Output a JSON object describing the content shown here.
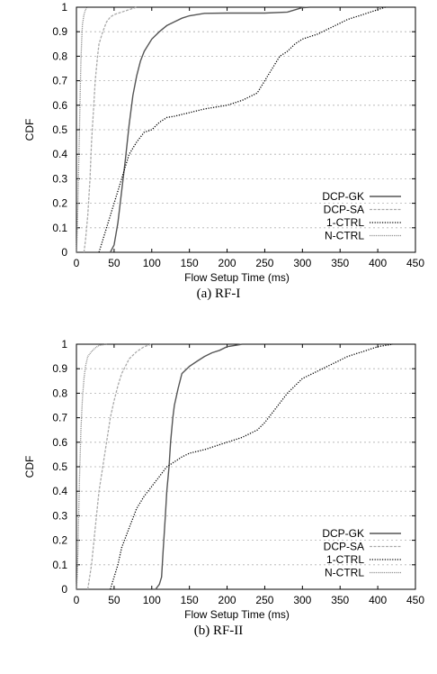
{
  "chart_data": [
    {
      "type": "line",
      "caption": "(a)  RF-I",
      "xlabel": "Flow Setup Time (ms)",
      "ylabel": "CDF",
      "xlim": [
        0,
        450
      ],
      "ylim": [
        0,
        1
      ],
      "xticks": [
        0,
        50,
        100,
        150,
        200,
        250,
        300,
        350,
        400,
        450
      ],
      "yticks": [
        0,
        0.1,
        0.2,
        0.3,
        0.4,
        0.5,
        0.6,
        0.7,
        0.8,
        0.9,
        1
      ],
      "grid": true,
      "legend_position": "bottom-right",
      "series": [
        {
          "name": "DCP-GK",
          "style": "solid",
          "color": "#555555",
          "x": [
            45,
            50,
            55,
            60,
            65,
            70,
            75,
            80,
            85,
            90,
            100,
            110,
            120,
            130,
            140,
            150,
            170,
            200,
            250,
            280,
            300,
            310
          ],
          "y": [
            0,
            0.03,
            0.12,
            0.25,
            0.38,
            0.52,
            0.64,
            0.72,
            0.78,
            0.82,
            0.87,
            0.9,
            0.925,
            0.94,
            0.955,
            0.965,
            0.975,
            0.976,
            0.976,
            0.98,
            0.998,
            1
          ]
        },
        {
          "name": "DCP-SA",
          "style": "dashed",
          "color": "#aaaaaa",
          "x": [
            10,
            12,
            15,
            18,
            20,
            23,
            25,
            28,
            30,
            35,
            40,
            45,
            50,
            60,
            70,
            80
          ],
          "y": [
            0,
            0.05,
            0.15,
            0.3,
            0.45,
            0.6,
            0.7,
            0.8,
            0.85,
            0.9,
            0.94,
            0.96,
            0.97,
            0.98,
            0.99,
            1
          ]
        },
        {
          "name": "1-CTRL",
          "style": "dotted",
          "color": "#000000",
          "x": [
            30,
            35,
            40,
            45,
            50,
            55,
            60,
            70,
            80,
            90,
            100,
            110,
            120,
            130,
            150,
            170,
            200,
            220,
            240,
            250,
            260,
            270,
            280,
            290,
            300,
            320,
            340,
            360,
            380,
            400,
            410
          ],
          "y": [
            0,
            0.05,
            0.1,
            0.15,
            0.2,
            0.25,
            0.3,
            0.4,
            0.45,
            0.49,
            0.5,
            0.53,
            0.55,
            0.555,
            0.57,
            0.585,
            0.6,
            0.62,
            0.65,
            0.7,
            0.75,
            0.8,
            0.82,
            0.85,
            0.87,
            0.89,
            0.92,
            0.95,
            0.97,
            0.99,
            1
          ]
        },
        {
          "name": "N-CTRL",
          "style": "fine-dotted",
          "color": "#777777",
          "x": [
            0,
            1,
            2,
            3,
            4,
            5,
            6,
            7,
            8,
            10,
            12,
            14
          ],
          "y": [
            0,
            0.08,
            0.2,
            0.35,
            0.5,
            0.65,
            0.78,
            0.87,
            0.93,
            0.97,
            0.99,
            1
          ]
        }
      ]
    },
    {
      "type": "line",
      "caption": "(b)  RF-II",
      "xlabel": "Flow Setup Time (ms)",
      "ylabel": "CDF",
      "xlim": [
        0,
        450
      ],
      "ylim": [
        0,
        1
      ],
      "xticks": [
        0,
        50,
        100,
        150,
        200,
        250,
        300,
        350,
        400,
        450
      ],
      "yticks": [
        0,
        0.1,
        0.2,
        0.3,
        0.4,
        0.5,
        0.6,
        0.7,
        0.8,
        0.9,
        1
      ],
      "grid": true,
      "legend_position": "bottom-right",
      "series": [
        {
          "name": "DCP-GK",
          "style": "solid",
          "color": "#555555",
          "x": [
            105,
            110,
            113,
            115,
            118,
            120,
            123,
            125,
            128,
            130,
            135,
            140,
            150,
            160,
            170,
            180,
            190,
            200,
            210,
            220
          ],
          "y": [
            0,
            0.02,
            0.05,
            0.15,
            0.3,
            0.4,
            0.5,
            0.6,
            0.7,
            0.75,
            0.82,
            0.88,
            0.91,
            0.93,
            0.95,
            0.965,
            0.975,
            0.99,
            0.995,
            1
          ]
        },
        {
          "name": "DCP-SA",
          "style": "dashed",
          "color": "#aaaaaa",
          "x": [
            15,
            20,
            25,
            30,
            35,
            40,
            45,
            50,
            55,
            60,
            65,
            70,
            80,
            90,
            100
          ],
          "y": [
            0,
            0.1,
            0.25,
            0.4,
            0.5,
            0.6,
            0.7,
            0.77,
            0.83,
            0.88,
            0.91,
            0.94,
            0.97,
            0.99,
            1
          ]
        },
        {
          "name": "1-CTRL",
          "style": "dotted",
          "color": "#000000",
          "x": [
            45,
            50,
            55,
            60,
            70,
            80,
            90,
            100,
            110,
            120,
            130,
            140,
            150,
            170,
            200,
            220,
            240,
            250,
            260,
            270,
            280,
            290,
            300,
            320,
            340,
            360,
            380,
            400,
            420
          ],
          "y": [
            0,
            0.05,
            0.1,
            0.17,
            0.25,
            0.33,
            0.38,
            0.42,
            0.46,
            0.5,
            0.52,
            0.54,
            0.555,
            0.57,
            0.6,
            0.62,
            0.65,
            0.68,
            0.72,
            0.76,
            0.8,
            0.83,
            0.86,
            0.89,
            0.92,
            0.95,
            0.97,
            0.99,
            1
          ]
        },
        {
          "name": "N-CTRL",
          "style": "fine-dotted",
          "color": "#777777",
          "x": [
            0,
            1,
            2,
            3,
            4,
            5,
            6,
            8,
            10,
            12,
            15,
            20,
            25,
            30,
            40
          ],
          "y": [
            0,
            0.05,
            0.15,
            0.3,
            0.45,
            0.55,
            0.65,
            0.78,
            0.86,
            0.91,
            0.95,
            0.97,
            0.985,
            0.995,
            1
          ]
        }
      ]
    }
  ]
}
